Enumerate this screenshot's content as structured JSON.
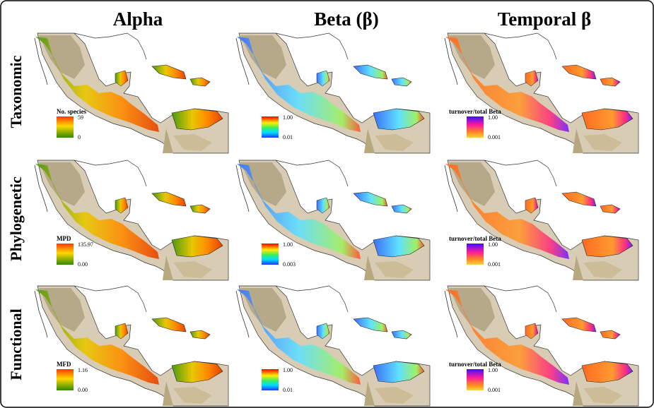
{
  "columns": [
    "Alpha",
    "Beta (β)",
    "Temporal β"
  ],
  "rows": [
    "Taxonomic",
    "Phylogenetic",
    "Functional"
  ],
  "panels": [
    [
      {
        "legend": {
          "title": "No. species",
          "max": "59",
          "min": "0"
        }
      },
      {
        "legend": {
          "max": "1.00",
          "min": "0.01"
        }
      },
      {
        "legend": {
          "title": "turnover/total Beta",
          "max": "1.00",
          "min": "0.001"
        }
      }
    ],
    [
      {
        "legend": {
          "title": "MPD",
          "max": "135.97",
          "min": "0.00"
        }
      },
      {
        "legend": {
          "max": "1.00",
          "min": "0.003"
        }
      },
      {
        "legend": {
          "title": "turnover/total Beta",
          "max": "1.00",
          "min": "0.001"
        }
      }
    ],
    [
      {
        "legend": {
          "title": "MFD",
          "max": "1.16",
          "min": "0.00"
        }
      },
      {
        "legend": {
          "max": "1.00",
          "min": "0.01"
        }
      },
      {
        "legend": {
          "title": "turnover/total Beta",
          "max": "1.00",
          "min": "0.001"
        }
      }
    ]
  ]
}
